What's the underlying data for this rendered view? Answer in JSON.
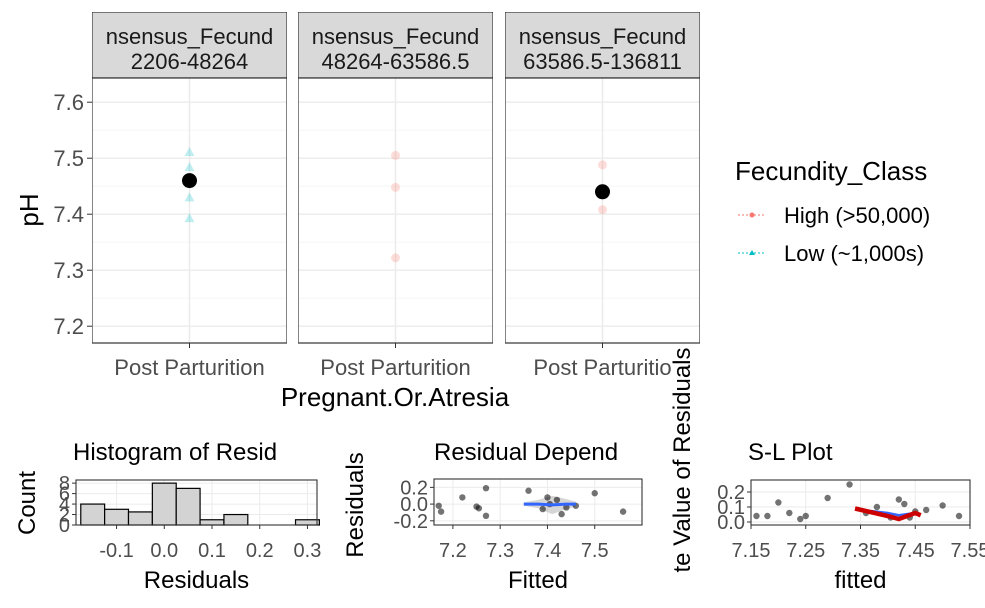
{
  "chart_data": [
    {
      "type": "scatter",
      "ylabel": "pH",
      "xlabel": "Pregnant.Or.Atresia",
      "ylim": [
        7.17,
        7.62
      ],
      "yticks": [
        "7.2",
        "7.3",
        "7.4",
        "7.5",
        "7.6"
      ],
      "grid": true,
      "legend": {
        "title": "Fecundity_Class",
        "position": "right",
        "entries": [
          {
            "label": "High (>50,000)",
            "color": "#F8766D",
            "shape": "circle"
          },
          {
            "label": "Low (~1,000s)",
            "color": "#00BFC4",
            "shape": "triangle"
          }
        ]
      },
      "panels": [
        {
          "strip": [
            "nsensus_Fecund",
            "2206-48264"
          ],
          "category": "Post Parturition",
          "points": [
            {
              "group": "Low (~1,000s)",
              "y": 7.511
            },
            {
              "group": "Low (~1,000s)",
              "y": 7.484
            },
            {
              "group": "Low (~1,000s)",
              "y": 7.455
            },
            {
              "group": "Low (~1,000s)",
              "y": 7.43
            },
            {
              "group": "Low (~1,000s)",
              "y": 7.393
            }
          ],
          "mean": 7.46
        },
        {
          "strip": [
            "nsensus_Fecund",
            "48264-63586.5"
          ],
          "category": "Post Parturition",
          "points": [
            {
              "group": "High (>50,000)",
              "y": 7.505
            },
            {
              "group": "High (>50,000)",
              "y": 7.448
            },
            {
              "group": "High (>50,000)",
              "y": 7.322
            }
          ],
          "mean": null
        },
        {
          "strip": [
            "nsensus_Fecund",
            "63586.5-136811"
          ],
          "category": "Post Parturitio",
          "points": [
            {
              "group": "High (>50,000)",
              "y": 7.488
            },
            {
              "group": "High (>50,000)",
              "y": 7.408
            }
          ],
          "mean": 7.44
        }
      ]
    },
    {
      "type": "bar",
      "title": "Histogram of Resid",
      "xlabel": "Residuals",
      "ylabel": "Count",
      "xlim": [
        -0.185,
        0.32
      ],
      "xticks": [
        "-0.1",
        "0.0",
        "0.1",
        "0.2",
        "0.3"
      ],
      "ylim": [
        0,
        8.6
      ],
      "yticks": [
        "0",
        "2",
        "4",
        "6",
        "8"
      ],
      "bin_width": 0.05,
      "bin_starts": [
        -0.175,
        -0.125,
        -0.075,
        -0.025,
        0.025,
        0.075,
        0.125,
        0.175,
        0.225,
        0.275
      ],
      "counts": [
        4,
        3,
        2.5,
        8,
        7,
        1,
        2,
        0,
        0,
        1
      ],
      "fill": "#d3d3d3"
    },
    {
      "type": "scatter",
      "title": "Residual Depend",
      "xlabel": "Fitted",
      "ylabel": "Residuals",
      "xlim": [
        7.16,
        7.6
      ],
      "xticks": [
        "7.2",
        "7.3",
        "7.4",
        "7.5"
      ],
      "ylim": [
        -0.25,
        0.3
      ],
      "yticks": [
        "-0.2",
        "0.0",
        "0.2"
      ],
      "points": [
        {
          "x": 7.17,
          "y": -0.02
        },
        {
          "x": 7.175,
          "y": -0.09
        },
        {
          "x": 7.22,
          "y": 0.08
        },
        {
          "x": 7.25,
          "y": -0.03
        },
        {
          "x": 7.255,
          "y": -0.05
        },
        {
          "x": 7.27,
          "y": -0.14
        },
        {
          "x": 7.27,
          "y": 0.19
        },
        {
          "x": 7.36,
          "y": 0.16
        },
        {
          "x": 7.39,
          "y": -0.06
        },
        {
          "x": 7.4,
          "y": 0.08
        },
        {
          "x": 7.405,
          "y": 0.0
        },
        {
          "x": 7.42,
          "y": 0.05
        },
        {
          "x": 7.43,
          "y": -0.12
        },
        {
          "x": 7.44,
          "y": -0.04
        },
        {
          "x": 7.46,
          "y": -0.02
        },
        {
          "x": 7.5,
          "y": 0.13
        },
        {
          "x": 7.56,
          "y": -0.09
        }
      ],
      "smooth": {
        "x": [
          7.35,
          7.38,
          7.41,
          7.44,
          7.46
        ],
        "y": [
          0.0,
          0.0,
          -0.01,
          0.0,
          0.0
        ],
        "color": "#3366FF"
      },
      "band": {
        "x": [
          7.35,
          7.38,
          7.41,
          7.44,
          7.46
        ],
        "lower": [
          -0.02,
          -0.05,
          -0.12,
          -0.06,
          -0.03
        ],
        "upper": [
          0.02,
          0.05,
          0.1,
          0.06,
          0.03
        ]
      }
    },
    {
      "type": "scatter",
      "title": "S-L Plot",
      "xlabel": "fitted",
      "ylabel": "te Value of Residuals",
      "xlim": [
        7.15,
        7.55
      ],
      "xticks": [
        "7.15",
        "7.25",
        "7.35",
        "7.45",
        "7.55"
      ],
      "ylim": [
        -0.02,
        0.28
      ],
      "yticks": [
        "0.0",
        "0.1",
        "0.2"
      ],
      "points": [
        {
          "x": 7.16,
          "y": 0.04
        },
        {
          "x": 7.18,
          "y": 0.04
        },
        {
          "x": 7.2,
          "y": 0.13
        },
        {
          "x": 7.22,
          "y": 0.06
        },
        {
          "x": 7.24,
          "y": 0.02
        },
        {
          "x": 7.25,
          "y": 0.04
        },
        {
          "x": 7.29,
          "y": 0.16
        },
        {
          "x": 7.33,
          "y": 0.25
        },
        {
          "x": 7.36,
          "y": 0.06
        },
        {
          "x": 7.38,
          "y": 0.1
        },
        {
          "x": 7.405,
          "y": 0.03
        },
        {
          "x": 7.42,
          "y": 0.15
        },
        {
          "x": 7.43,
          "y": 0.12
        },
        {
          "x": 7.44,
          "y": 0.03
        },
        {
          "x": 7.45,
          "y": 0.07
        },
        {
          "x": 7.47,
          "y": 0.08
        },
        {
          "x": 7.5,
          "y": 0.11
        },
        {
          "x": 7.53,
          "y": 0.04
        }
      ],
      "smooth": {
        "x": [
          7.34,
          7.4,
          7.42,
          7.45,
          7.46
        ],
        "y": [
          0.09,
          0.04,
          0.02,
          0.06,
          0.045
        ],
        "color": "#CC0000"
      },
      "smooth2": {
        "x": [
          7.34,
          7.4,
          7.42,
          7.45
        ],
        "y": [
          0.085,
          0.06,
          0.045,
          0.06
        ],
        "color": "#3366FF"
      }
    }
  ]
}
